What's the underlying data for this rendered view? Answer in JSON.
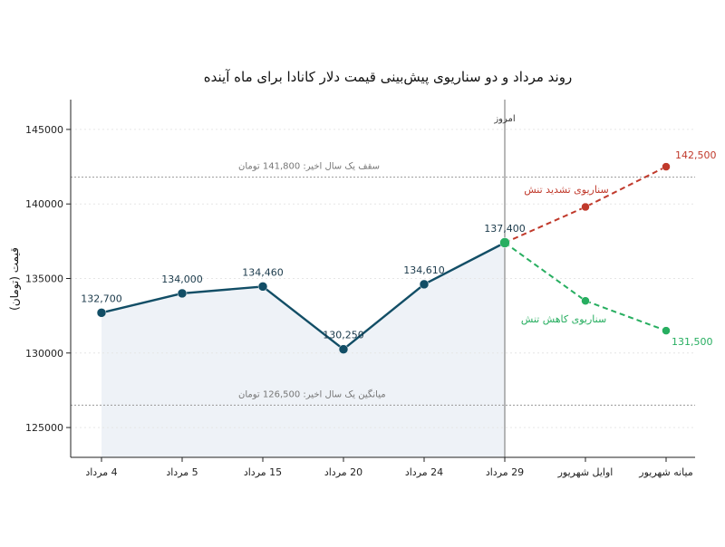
{
  "chart_data": {
    "type": "line",
    "title": "روند مرداد و دو سناریوی پیش‌بینی قیمت دلار کانادا برای ماه آینده",
    "ylabel": "قیمت (تومان)",
    "xlabel": "",
    "ylim": [
      123000,
      147000
    ],
    "yticks": [
      125000,
      130000,
      135000,
      140000,
      145000
    ],
    "categories": [
      "4 مرداد",
      "5 مرداد",
      "15 مرداد",
      "20 مرداد",
      "24 مرداد",
      "29 مرداد",
      "اوایل شهریور",
      "میانه شهریور"
    ],
    "grid": true,
    "series": [
      {
        "values": [
          132700,
          134000,
          134460,
          130250,
          134610,
          137400,
          null,
          null
        ],
        "labels": [
          "132,700",
          "134,000",
          "134,460",
          "130,250",
          "134,610",
          "137,400",
          null,
          null
        ],
        "color": "#124e66",
        "style": "solid"
      },
      {
        "name": "سناریوی تشدید تنش",
        "values": [
          null,
          null,
          null,
          null,
          null,
          137400,
          139800,
          142500
        ],
        "end_label": "142,500",
        "color": "#c0392b",
        "style": "dashed"
      },
      {
        "name": "سناریوی کاهش تنش",
        "values": [
          null,
          null,
          null,
          null,
          null,
          137400,
          133500,
          131500
        ],
        "end_label": "131,500",
        "color": "#27ae60",
        "style": "dashed"
      }
    ],
    "reference_lines": [
      {
        "value": 141800,
        "label": "سقف یک سال اخیر: 141,800 تومان"
      },
      {
        "value": 126500,
        "label": "میانگین یک سال اخیر: 126,500 تومان"
      }
    ],
    "today_marker": {
      "category_index": 5,
      "label": "امروز"
    },
    "colors": {
      "history": "#124e66",
      "history_fill": "#e8eef4",
      "up": "#c0392b",
      "down": "#27ae60",
      "today_point": "#27ae60"
    }
  }
}
